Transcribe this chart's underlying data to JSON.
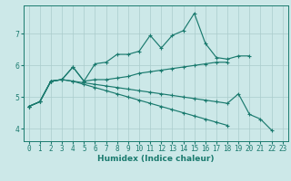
{
  "xlabel": "Humidex (Indice chaleur)",
  "ylabel": "",
  "bg_color": "#cce8e8",
  "line_color": "#1a7a6e",
  "grid_color": "#aacccc",
  "x": [
    0,
    1,
    2,
    3,
    4,
    5,
    6,
    7,
    8,
    9,
    10,
    11,
    12,
    13,
    14,
    15,
    16,
    17,
    18,
    19,
    20,
    21,
    22,
    23
  ],
  "series": [
    [
      4.7,
      4.85,
      5.5,
      5.55,
      5.95,
      5.5,
      6.05,
      6.1,
      6.35,
      6.35,
      6.45,
      6.95,
      6.55,
      6.95,
      7.1,
      7.65,
      6.7,
      6.25,
      6.2,
      6.3,
      6.3,
      null,
      null,
      null
    ],
    [
      4.7,
      4.85,
      5.5,
      5.55,
      5.95,
      5.5,
      5.55,
      5.55,
      5.6,
      5.65,
      5.75,
      5.8,
      5.85,
      5.9,
      5.95,
      6.0,
      6.05,
      6.1,
      6.1,
      null,
      null,
      null,
      null,
      null
    ],
    [
      4.7,
      4.85,
      5.5,
      5.55,
      5.5,
      5.45,
      5.4,
      5.35,
      5.3,
      5.25,
      5.2,
      5.15,
      5.1,
      5.05,
      5.0,
      4.95,
      4.9,
      4.85,
      4.8,
      5.1,
      4.45,
      4.3,
      3.95,
      null
    ],
    [
      4.7,
      4.85,
      5.5,
      5.55,
      5.5,
      5.4,
      5.3,
      5.2,
      5.1,
      5.0,
      4.9,
      4.8,
      4.7,
      4.6,
      4.5,
      4.4,
      4.3,
      4.2,
      4.1,
      null,
      null,
      null,
      null,
      null
    ]
  ],
  "yticks": [
    4,
    5,
    6,
    7
  ],
  "xtick_labels": [
    "0",
    "1",
    "2",
    "3",
    "4",
    "5",
    "6",
    "7",
    "8",
    "9",
    "10",
    "11",
    "12",
    "13",
    "14",
    "15",
    "16",
    "17",
    "18",
    "19",
    "20",
    "21",
    "22",
    "23"
  ],
  "ylim": [
    3.6,
    7.9
  ],
  "xlim": [
    -0.5,
    23.5
  ],
  "fontsize_xlabel": 6.5,
  "fontsize_ticks": 5.5,
  "marker": "+",
  "markersize": 3.5,
  "linewidth": 0.85
}
